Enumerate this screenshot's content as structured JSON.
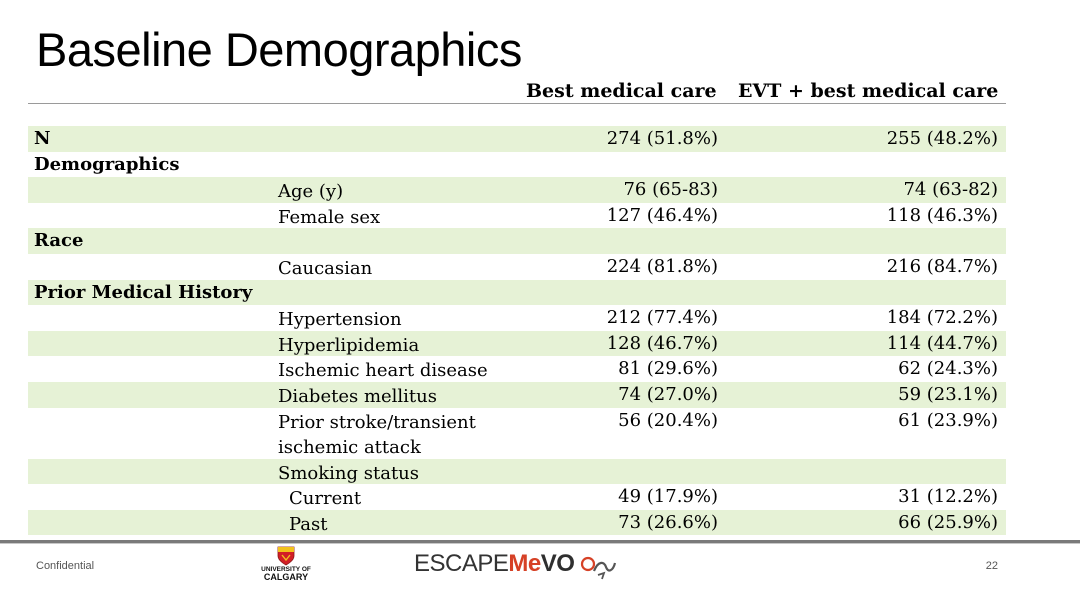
{
  "title": "Baseline Demographics",
  "columns": [
    "Best medical care",
    "EVT + best medical care"
  ],
  "rows": [
    {
      "section": "N",
      "label": "",
      "c1": "274 (51.8%)",
      "c2": "255 (48.2%)"
    },
    {
      "section": "Demographics",
      "label": "",
      "c1": "",
      "c2": ""
    },
    {
      "section": "",
      "label": "Age (y)",
      "c1": "76 (65-83)",
      "c2": "74 (63-82)"
    },
    {
      "section": "",
      "label": "Female sex",
      "c1": "127 (46.4%)",
      "c2": "118 (46.3%)"
    },
    {
      "section": "Race",
      "label": "",
      "c1": "",
      "c2": ""
    },
    {
      "section": "",
      "label": "Caucasian",
      "c1": "224 (81.8%)",
      "c2": "216 (84.7%)"
    },
    {
      "section": "Prior Medical History",
      "label": "",
      "c1": "",
      "c2": ""
    },
    {
      "section": "",
      "label": "Hypertension",
      "c1": "212 (77.4%)",
      "c2": "184 (72.2%)"
    },
    {
      "section": "",
      "label": "Hyperlipidemia",
      "c1": "128 (46.7%)",
      "c2": "114 (44.7%)"
    },
    {
      "section": "",
      "label": "Ischemic heart disease",
      "c1": "81 (29.6%)",
      "c2": "62 (24.3%)"
    },
    {
      "section": "",
      "label": "Diabetes mellitus",
      "c1": "74 (27.0%)",
      "c2": "59 (23.1%)"
    },
    {
      "section": "",
      "label": "Prior stroke/transient ischemic attack",
      "c1": "56 (20.4%)",
      "c2": "61 (23.9%)"
    },
    {
      "section": "",
      "label": "Smoking status",
      "c1": "",
      "c2": ""
    },
    {
      "section": "",
      "label": "Current",
      "c1": "49 (17.9%)",
      "c2": "31 (12.2%)"
    },
    {
      "section": "",
      "label": "Past",
      "c1": "73 (26.6%)",
      "c2": "66 (25.9%)"
    }
  ],
  "footer": {
    "confidential": "Confidential",
    "university_line1": "UNIVERSITY OF",
    "university_line2": "CALGARY",
    "escape": "ESCAPE",
    "me": "Me",
    "vo": "VO",
    "page_number": "22"
  },
  "colors": {
    "shade": "#e6f2d6",
    "accent": "#d64126"
  }
}
